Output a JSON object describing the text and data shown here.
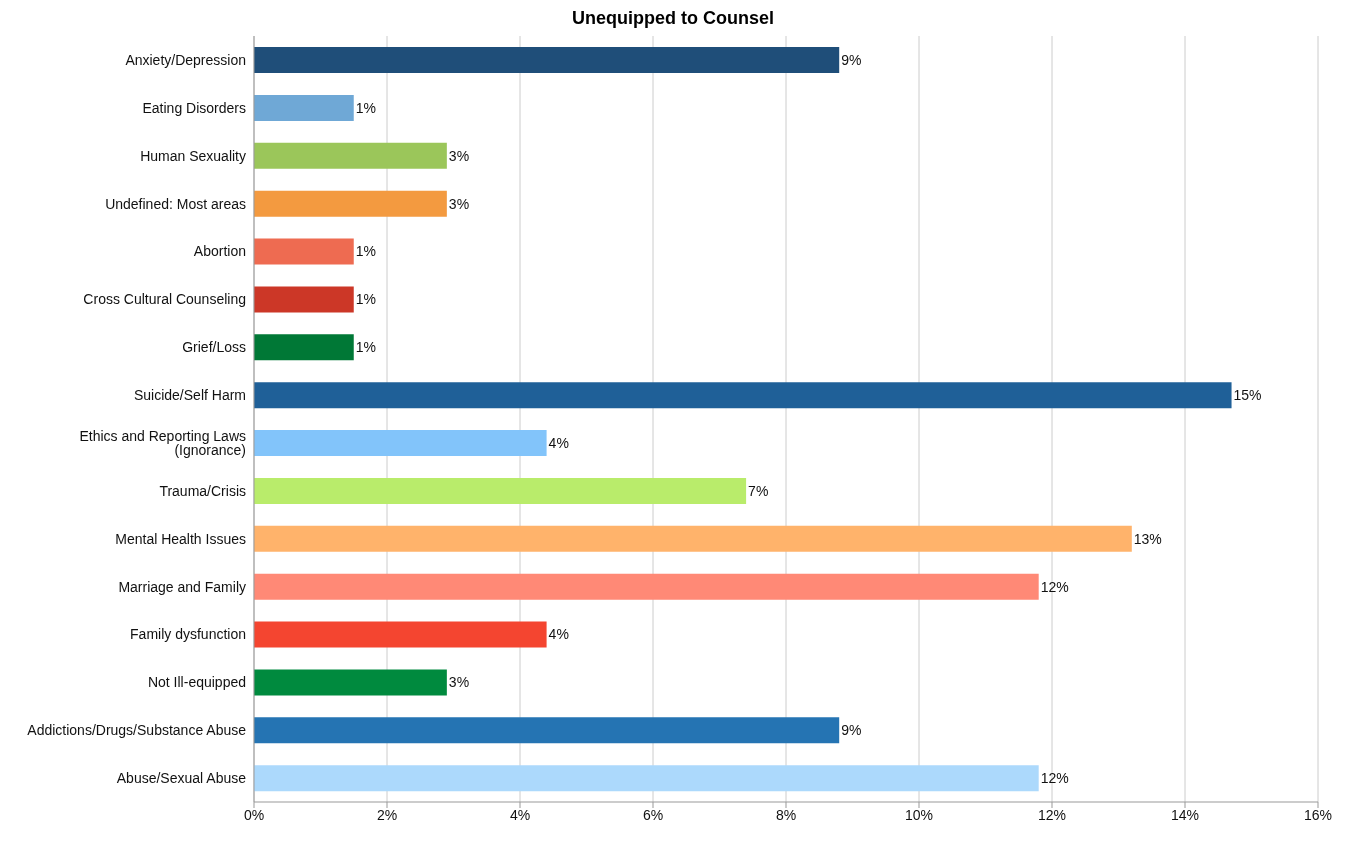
{
  "chart_data": {
    "type": "bar",
    "orientation": "horizontal",
    "title": "Unequipped to Counsel",
    "categories": [
      "Anxiety/Depression",
      "Eating Disorders",
      "Human Sexuality",
      "Undefined: Most areas",
      "Abortion",
      "Cross Cultural Counseling",
      "Grief/Loss",
      "Suicide/Self Harm",
      "Ethics and Reporting Laws (Ignorance)",
      "Trauma/Crisis",
      "Mental Health Issues",
      "Marriage and Family",
      "Family dysfunction",
      "Not Ill-equipped",
      "Addictions/Drugs/Substance Abuse",
      "Abuse/Sexual Abuse"
    ],
    "values": [
      8.8,
      1.5,
      2.9,
      2.9,
      1.5,
      1.5,
      1.5,
      14.7,
      4.4,
      7.4,
      13.2,
      11.8,
      4.4,
      2.9,
      8.8,
      11.8
    ],
    "value_labels": [
      "9%",
      "1%",
      "3%",
      "3%",
      "1%",
      "1%",
      "1%",
      "15%",
      "4%",
      "7%",
      "13%",
      "12%",
      "4%",
      "3%",
      "9%",
      "12%"
    ],
    "colors": [
      "#1f4e79",
      "#6fa8d6",
      "#9bc65a",
      "#f39a40",
      "#ee6b51",
      "#cc3727",
      "#007836",
      "#1f6098",
      "#82c4fa",
      "#b9ec6b",
      "#ffb36b",
      "#ff8976",
      "#f44530",
      "#008a3e",
      "#2574b3",
      "#acd9fc"
    ],
    "xlim": [
      0,
      16
    ],
    "xticks": [
      {
        "value": 0,
        "label": "0%"
      },
      {
        "value": 2,
        "label": "2%"
      },
      {
        "value": 4,
        "label": "4%"
      },
      {
        "value": 6,
        "label": "6%"
      },
      {
        "value": 8,
        "label": "8%"
      },
      {
        "value": 10,
        "label": "10%"
      },
      {
        "value": 12,
        "label": "12%"
      },
      {
        "value": 14,
        "label": "14%"
      },
      {
        "value": 16,
        "label": "16%"
      }
    ],
    "grid": "x",
    "legend": false
  }
}
